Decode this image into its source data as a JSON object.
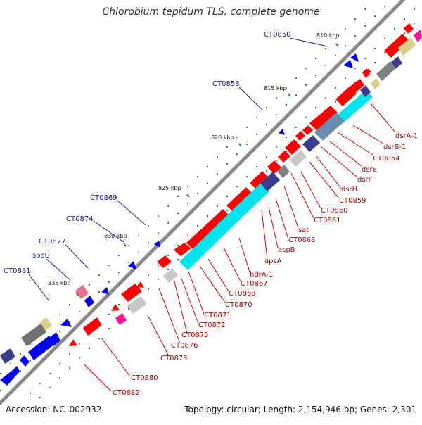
{
  "title": "Chlorobium tepidum TLS, complete genome",
  "accession": "Accession: NC_002932",
  "stats": "Topology: circular; Length: 2,154,946 bp; Genes: 2,301",
  "ticks": [
    "810 kbp",
    "815 kbp",
    "820 kbp",
    "825 kbp",
    "830 kbp",
    "835 kbp"
  ],
  "blue_labels": [
    "CT0850",
    "CT0858",
    "CT0869",
    "CT0874",
    "CT0877",
    "spoU",
    "CT0881"
  ],
  "red_labels": [
    "dsrA-1",
    "dsrB-1",
    "CT0854",
    "dsrE",
    "dsrF",
    "dsrH",
    "CT0859",
    "CT0860",
    "CT0861",
    "sat",
    "CT0863",
    "aspB",
    "apsA",
    "hdrA-1",
    "CT0867",
    "CT0868",
    "CT0870",
    "CT0871",
    "CT0872",
    "CT0875",
    "CT0876",
    "CT0878",
    "CT0880",
    "CT0882"
  ],
  "colors": {
    "forward_gene": "#ff0000",
    "reverse_gene": "#0000ee",
    "backbone": "#888888",
    "tick_mark": "#2e8b2e",
    "cyan_feature": "#00e5ee",
    "navy_feature": "#3b3b8f",
    "gray_feature": "#808080",
    "light_gray_feature": "#c8c8c8",
    "khaki_feature": "#d8cf8a",
    "pink_feature": "#ff1493",
    "steel_feature": "#6a8cb0"
  }
}
